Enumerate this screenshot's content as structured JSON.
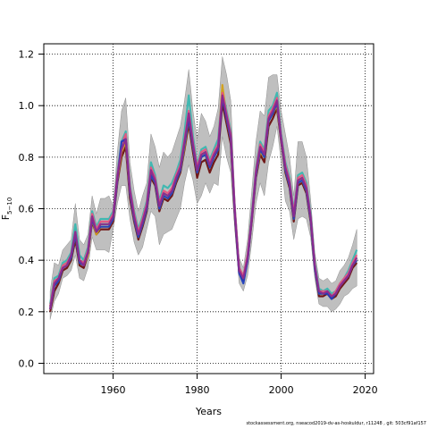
{
  "chart_data": {
    "type": "line",
    "xlabel": "Years",
    "ylabel": "F",
    "ylabel_sub": "5−10",
    "xlim": [
      1943.5,
      2022
    ],
    "ylim": [
      -0.04,
      1.24
    ],
    "xticks": [
      1960,
      1980,
      2000,
      2020
    ],
    "yticks": [
      0.0,
      0.2,
      0.4,
      0.6,
      0.8,
      1.0,
      1.2
    ],
    "grid": "dotted",
    "x": [
      1945,
      1946,
      1947,
      1948,
      1949,
      1950,
      1951,
      1952,
      1953,
      1954,
      1955,
      1956,
      1957,
      1958,
      1959,
      1960,
      1961,
      1962,
      1963,
      1964,
      1965,
      1966,
      1967,
      1968,
      1969,
      1970,
      1971,
      1972,
      1973,
      1974,
      1975,
      1976,
      1977,
      1978,
      1979,
      1980,
      1981,
      1982,
      1983,
      1984,
      1985,
      1986,
      1987,
      1988,
      1989,
      1990,
      1991,
      1992,
      1993,
      1994,
      1995,
      1996,
      1997,
      1998,
      1999,
      2000,
      2001,
      2002,
      2003,
      2004,
      2005,
      2006,
      2007,
      2008,
      2009,
      2010,
      2011,
      2012,
      2013,
      2014,
      2015,
      2016,
      2017,
      2018
    ],
    "band_lower": [
      0.17,
      0.24,
      0.27,
      0.33,
      0.34,
      0.36,
      0.42,
      0.33,
      0.32,
      0.37,
      0.49,
      0.44,
      0.44,
      0.44,
      0.43,
      0.52,
      0.62,
      0.69,
      0.69,
      0.56,
      0.47,
      0.42,
      0.45,
      0.52,
      0.59,
      0.57,
      0.46,
      0.5,
      0.51,
      0.52,
      0.56,
      0.6,
      0.7,
      0.77,
      0.71,
      0.62,
      0.65,
      0.7,
      0.66,
      0.7,
      0.69,
      0.88,
      0.8,
      0.74,
      0.51,
      0.31,
      0.28,
      0.34,
      0.47,
      0.62,
      0.7,
      0.65,
      0.78,
      0.84,
      0.92,
      0.78,
      0.63,
      0.59,
      0.48,
      0.56,
      0.57,
      0.56,
      0.49,
      0.33,
      0.23,
      0.22,
      0.22,
      0.2,
      0.21,
      0.23,
      0.26,
      0.27,
      0.29,
      0.3
    ],
    "band_upper": [
      0.28,
      0.39,
      0.38,
      0.44,
      0.46,
      0.48,
      0.62,
      0.48,
      0.46,
      0.5,
      0.65,
      0.58,
      0.64,
      0.64,
      0.65,
      0.61,
      0.82,
      0.98,
      1.03,
      0.78,
      0.67,
      0.59,
      0.65,
      0.7,
      0.89,
      0.84,
      0.76,
      0.82,
      0.8,
      0.82,
      0.87,
      0.92,
      1.02,
      1.14,
      0.98,
      0.87,
      0.97,
      0.94,
      0.88,
      0.92,
      0.99,
      1.19,
      1.12,
      1.02,
      0.64,
      0.41,
      0.37,
      0.48,
      0.67,
      0.86,
      0.98,
      0.96,
      1.11,
      1.12,
      1.12,
      0.98,
      0.89,
      0.8,
      0.65,
      0.86,
      0.86,
      0.8,
      0.64,
      0.43,
      0.33,
      0.32,
      0.33,
      0.31,
      0.32,
      0.36,
      0.38,
      0.41,
      0.46,
      0.52
    ],
    "series": [
      {
        "color": "#2ca25f",
        "values": [
          0.22,
          0.31,
          0.33,
          0.38,
          0.39,
          0.42,
          0.52,
          0.4,
          0.39,
          0.43,
          0.57,
          0.51,
          0.54,
          0.54,
          0.54,
          0.57,
          0.72,
          0.84,
          0.88,
          0.67,
          0.57,
          0.5,
          0.55,
          0.61,
          0.74,
          0.71,
          0.61,
          0.66,
          0.65,
          0.67,
          0.72,
          0.76,
          0.86,
          0.96,
          0.85,
          0.75,
          0.81,
          0.82,
          0.77,
          0.81,
          0.84,
          1.04,
          0.96,
          0.88,
          0.58,
          0.36,
          0.33,
          0.41,
          0.57,
          0.74,
          0.84,
          0.81,
          0.95,
          0.98,
          1.02,
          0.88,
          0.76,
          0.7,
          0.57,
          0.71,
          0.72,
          0.68,
          0.57,
          0.38,
          0.28,
          0.27,
          0.28,
          0.26,
          0.27,
          0.3,
          0.32,
          0.34,
          0.38,
          0.41
        ]
      },
      {
        "color": "#6b0f0f",
        "values": [
          0.2,
          0.28,
          0.31,
          0.36,
          0.37,
          0.4,
          0.48,
          0.38,
          0.37,
          0.42,
          0.55,
          0.5,
          0.52,
          0.52,
          0.52,
          0.55,
          0.7,
          0.8,
          0.84,
          0.64,
          0.55,
          0.48,
          0.53,
          0.59,
          0.72,
          0.69,
          0.59,
          0.64,
          0.63,
          0.65,
          0.7,
          0.74,
          0.83,
          0.93,
          0.82,
          0.72,
          0.78,
          0.79,
          0.74,
          0.78,
          0.81,
          1.01,
          0.93,
          0.85,
          0.56,
          0.35,
          0.32,
          0.4,
          0.55,
          0.72,
          0.81,
          0.78,
          0.92,
          0.95,
          0.99,
          0.86,
          0.74,
          0.68,
          0.55,
          0.69,
          0.7,
          0.66,
          0.55,
          0.37,
          0.26,
          0.26,
          0.27,
          0.25,
          0.26,
          0.29,
          0.31,
          0.33,
          0.37,
          0.39
        ]
      },
      {
        "color": "#3ab7b0",
        "values": [
          0.23,
          0.33,
          0.34,
          0.39,
          0.4,
          0.43,
          0.54,
          0.42,
          0.4,
          0.45,
          0.59,
          0.53,
          0.56,
          0.56,
          0.56,
          0.59,
          0.74,
          0.86,
          0.9,
          0.69,
          0.59,
          0.52,
          0.57,
          0.63,
          0.78,
          0.73,
          0.63,
          0.69,
          0.68,
          0.7,
          0.74,
          0.79,
          0.9,
          1.04,
          0.88,
          0.77,
          0.83,
          0.84,
          0.79,
          0.83,
          0.87,
          1.06,
          0.98,
          0.9,
          0.59,
          0.37,
          0.34,
          0.42,
          0.58,
          0.76,
          0.86,
          0.83,
          0.98,
          1.0,
          1.05,
          0.89,
          0.78,
          0.72,
          0.59,
          0.73,
          0.74,
          0.7,
          0.58,
          0.39,
          0.29,
          0.28,
          0.29,
          0.27,
          0.28,
          0.31,
          0.33,
          0.36,
          0.4,
          0.44
        ]
      },
      {
        "color": "#d4a017",
        "values": [
          0.21,
          0.3,
          0.32,
          0.37,
          0.38,
          0.41,
          0.5,
          0.39,
          0.38,
          0.42,
          0.56,
          0.5,
          0.53,
          0.53,
          0.53,
          0.56,
          0.71,
          0.82,
          0.86,
          0.66,
          0.56,
          0.49,
          0.54,
          0.6,
          0.73,
          0.7,
          0.6,
          0.65,
          0.64,
          0.66,
          0.71,
          0.75,
          0.84,
          0.95,
          0.84,
          0.74,
          0.8,
          0.81,
          0.76,
          0.8,
          0.83,
          1.08,
          0.95,
          0.87,
          0.57,
          0.36,
          0.33,
          0.41,
          0.56,
          0.73,
          0.82,
          0.8,
          0.94,
          0.97,
          1.0,
          0.87,
          0.75,
          0.69,
          0.56,
          0.7,
          0.71,
          0.67,
          0.56,
          0.38,
          0.27,
          0.27,
          0.28,
          0.26,
          0.27,
          0.3,
          0.32,
          0.34,
          0.38,
          0.4
        ]
      },
      {
        "color": "#e75480",
        "values": [
          0.22,
          0.32,
          0.33,
          0.38,
          0.39,
          0.42,
          0.51,
          0.4,
          0.39,
          0.44,
          0.58,
          0.52,
          0.55,
          0.55,
          0.55,
          0.58,
          0.73,
          0.85,
          0.89,
          0.68,
          0.58,
          0.51,
          0.56,
          0.62,
          0.76,
          0.72,
          0.62,
          0.67,
          0.66,
          0.68,
          0.73,
          0.77,
          0.87,
          0.98,
          0.86,
          0.76,
          0.82,
          0.83,
          0.78,
          0.82,
          0.85,
          1.05,
          0.97,
          0.89,
          0.59,
          0.37,
          0.34,
          0.42,
          0.57,
          0.75,
          0.85,
          0.82,
          0.96,
          0.99,
          1.03,
          0.88,
          0.77,
          0.71,
          0.58,
          0.72,
          0.73,
          0.69,
          0.57,
          0.38,
          0.28,
          0.28,
          0.28,
          0.26,
          0.28,
          0.31,
          0.33,
          0.35,
          0.39,
          0.42
        ]
      },
      {
        "color": "#1f3fbf",
        "values": [
          0.21,
          0.3,
          0.32,
          0.37,
          0.38,
          0.41,
          0.5,
          0.39,
          0.38,
          0.43,
          0.56,
          0.51,
          0.53,
          0.53,
          0.53,
          0.56,
          0.71,
          0.86,
          0.87,
          0.66,
          0.56,
          0.49,
          0.54,
          0.6,
          0.73,
          0.7,
          0.6,
          0.65,
          0.64,
          0.66,
          0.71,
          0.75,
          0.85,
          0.95,
          0.84,
          0.74,
          0.8,
          0.81,
          0.76,
          0.8,
          0.83,
          1.03,
          0.95,
          0.87,
          0.57,
          0.35,
          0.31,
          0.4,
          0.56,
          0.73,
          0.83,
          0.8,
          0.94,
          0.97,
          1.01,
          0.87,
          0.75,
          0.69,
          0.56,
          0.7,
          0.71,
          0.67,
          0.56,
          0.37,
          0.27,
          0.27,
          0.27,
          0.25,
          0.27,
          0.3,
          0.32,
          0.34,
          0.38,
          0.4
        ]
      },
      {
        "color": "#8e2a8e",
        "values": [
          0.21,
          0.31,
          0.33,
          0.37,
          0.38,
          0.42,
          0.51,
          0.4,
          0.38,
          0.43,
          0.57,
          0.51,
          0.54,
          0.54,
          0.54,
          0.57,
          0.72,
          0.83,
          0.87,
          0.67,
          0.57,
          0.5,
          0.55,
          0.61,
          0.75,
          0.71,
          0.61,
          0.66,
          0.65,
          0.67,
          0.72,
          0.76,
          0.86,
          0.97,
          0.85,
          0.75,
          0.81,
          0.82,
          0.77,
          0.81,
          0.84,
          1.04,
          0.96,
          0.88,
          0.58,
          0.36,
          0.33,
          0.41,
          0.56,
          0.74,
          0.84,
          0.81,
          0.95,
          0.98,
          1.02,
          0.87,
          0.76,
          0.7,
          0.57,
          0.71,
          0.72,
          0.68,
          0.57,
          0.38,
          0.28,
          0.27,
          0.28,
          0.26,
          0.27,
          0.3,
          0.32,
          0.34,
          0.38,
          0.41
        ]
      }
    ]
  },
  "footer": "stockassessment.org, nseacod2019-dv-as-hoskuldur, r11248 , git: 503cf91af157"
}
